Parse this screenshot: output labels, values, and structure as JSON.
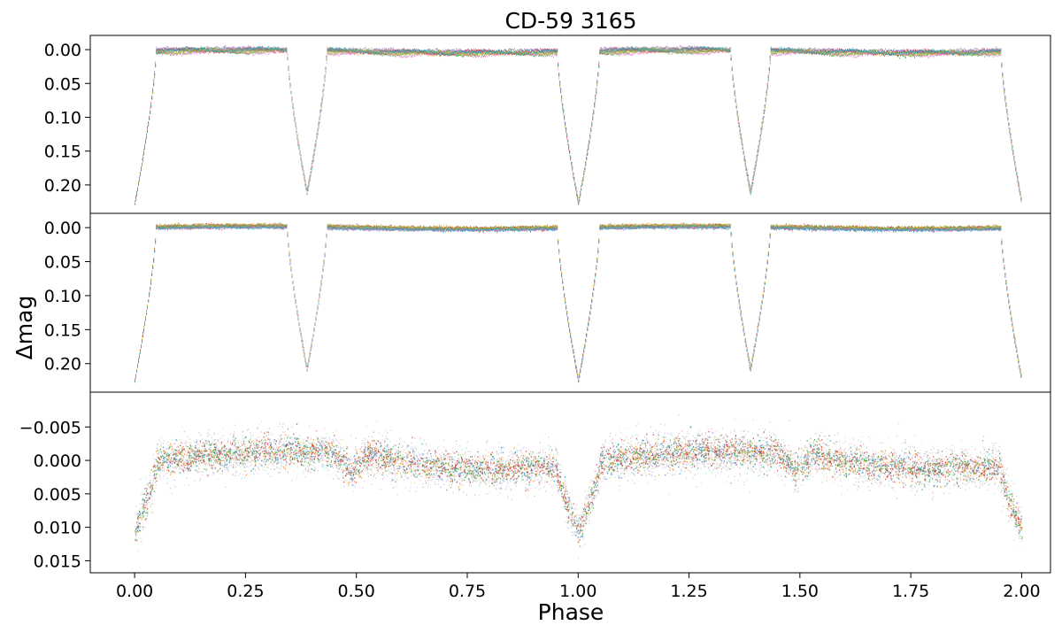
{
  "chart_data": {
    "type": "scatter",
    "title": "CD-59 3165",
    "xlabel": "Phase",
    "ylabel": "Δmag",
    "xlim": [
      -0.1,
      2.065
    ],
    "xticks": [
      "0.00",
      "0.25",
      "0.50",
      "0.75",
      "1.00",
      "1.25",
      "1.50",
      "1.75",
      "2.00"
    ],
    "series_colors": [
      "#1f77b4",
      "#ff7f0e",
      "#2ca02c",
      "#d62728",
      "#9467bd",
      "#8c564b",
      "#e377c2",
      "#7f7f7f",
      "#bcbd22",
      "#17becf"
    ],
    "panels": [
      {
        "name": "observed-light-curve",
        "ylim": [
          0.242,
          -0.021
        ],
        "inverted": true,
        "yticks": [
          "0.00",
          "0.05",
          "0.10",
          "0.15",
          "0.20"
        ],
        "model": {
          "baseline": 0.0,
          "primary_eclipse": {
            "center": 0.0,
            "depth": 0.225,
            "half_width": 0.048
          },
          "secondary_eclipse": {
            "center": 0.388,
            "depth": 0.21,
            "half_width": 0.045
          }
        },
        "spots": true
      },
      {
        "name": "spot-corrected-light-curve",
        "ylim": [
          0.242,
          -0.021
        ],
        "inverted": true,
        "yticks": [
          "0.00",
          "0.05",
          "0.10",
          "0.15",
          "0.20"
        ],
        "model": {
          "baseline": 0.0,
          "primary_eclipse": {
            "center": 0.0,
            "depth": 0.225,
            "half_width": 0.048
          },
          "secondary_eclipse": {
            "center": 0.388,
            "depth": 0.21,
            "half_width": 0.045
          }
        },
        "spots": false
      },
      {
        "name": "residuals",
        "ylim": [
          0.0168,
          -0.0102
        ],
        "inverted": true,
        "yticks": [
          "−0.005",
          "0.000",
          "0.005",
          "0.010",
          "0.015"
        ],
        "model": {
          "baseline": 0.0,
          "primary_dip": {
            "center": 0.0,
            "depth": 0.01,
            "half_width": 0.05
          },
          "secondary_dip": {
            "center": 0.49,
            "depth": 0.0035,
            "half_width": 0.045
          }
        }
      }
    ]
  }
}
